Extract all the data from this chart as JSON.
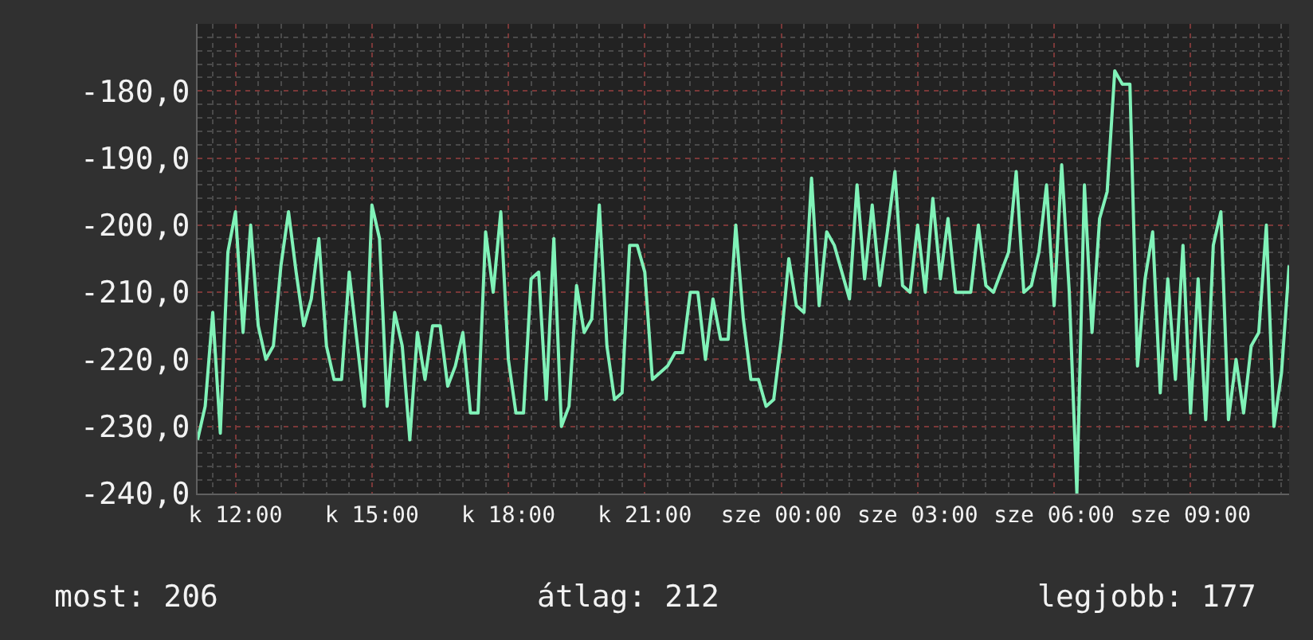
{
  "chart_data": {
    "type": "line",
    "color": "#80f2b8",
    "grid": true,
    "ylim": [
      -240,
      -170
    ],
    "yticks": [
      {
        "value": -240,
        "label": "-240,0"
      },
      {
        "value": -230,
        "label": "-230,0"
      },
      {
        "value": -220,
        "label": "-220,0"
      },
      {
        "value": -210,
        "label": "-210,0"
      },
      {
        "value": -200,
        "label": "-200,0"
      },
      {
        "value": -190,
        "label": "-190,0"
      },
      {
        "value": -180,
        "label": "-180,0"
      }
    ],
    "annotations": [
      "most: 206",
      "átlag: 212",
      "legjobb: 177"
    ],
    "categories": [
      null,
      null,
      null,
      null,
      null,
      "k 12:00",
      null,
      null,
      null,
      null,
      null,
      null,
      null,
      null,
      null,
      null,
      null,
      null,
      null,
      null,
      null,
      null,
      null,
      "k 15:00",
      null,
      null,
      null,
      null,
      null,
      null,
      null,
      null,
      null,
      null,
      null,
      null,
      null,
      null,
      null,
      null,
      null,
      "k 18:00",
      null,
      null,
      null,
      null,
      null,
      null,
      null,
      null,
      null,
      null,
      null,
      null,
      null,
      null,
      null,
      null,
      null,
      "k 21:00",
      null,
      null,
      null,
      null,
      null,
      null,
      null,
      null,
      null,
      null,
      null,
      null,
      null,
      null,
      null,
      null,
      null,
      "sze 00:00",
      null,
      null,
      null,
      null,
      null,
      null,
      null,
      null,
      null,
      null,
      null,
      null,
      null,
      null,
      null,
      null,
      null,
      "sze 03:00",
      null,
      null,
      null,
      null,
      null,
      null,
      null,
      null,
      null,
      null,
      null,
      null,
      null,
      null,
      null,
      null,
      null,
      "sze 06:00",
      null,
      null,
      null,
      null,
      null,
      null,
      null,
      null,
      null,
      null,
      null,
      null,
      null,
      null,
      null,
      null,
      null,
      "sze 09:00",
      null,
      null,
      null,
      null,
      null,
      null,
      null,
      null,
      null,
      null,
      null,
      null,
      null
    ],
    "values": [
      -232,
      -227,
      -213,
      -231,
      -204,
      -198,
      -216,
      -200,
      -215,
      -220,
      -218,
      -206,
      -198,
      -207,
      -215,
      -211,
      -202,
      -218,
      -223,
      -223,
      -207,
      -217,
      -227,
      -197,
      -202,
      -227,
      -213,
      -218,
      -232,
      -216,
      -223,
      -215,
      -215,
      -224,
      -221,
      -216,
      -228,
      -228,
      -201,
      -210,
      -198,
      -220,
      -228,
      -228,
      -208,
      -207,
      -226,
      -202,
      -230,
      -227,
      -209,
      -216,
      -214,
      -197,
      -218,
      -226,
      -225,
      -203,
      -203,
      -207,
      -223,
      -222,
      -221,
      -219,
      -219,
      -210,
      -210,
      -220,
      -211,
      -217,
      -217,
      -200,
      -214,
      -223,
      -223,
      -227,
      -226,
      -217,
      -205,
      -212,
      -213,
      -193,
      -212,
      -201,
      -203,
      -207,
      -211,
      -194,
      -208,
      -197,
      -209,
      -201,
      -192,
      -209,
      -210,
      -200,
      -210,
      -196,
      -208,
      -199,
      -210,
      -210,
      -210,
      -200,
      -209,
      -210,
      -207,
      -204,
      -192,
      -210,
      -209,
      -204,
      -194,
      -212,
      -191,
      -210,
      -240,
      -194,
      -216,
      -199,
      -195,
      -177,
      -179,
      -179,
      -221,
      -208,
      -201,
      -225,
      -208,
      -223,
      -203,
      -228,
      -208,
      -229,
      -203,
      -198,
      -229,
      -220,
      -228,
      -218,
      -216,
      -200,
      -230,
      -222,
      -206
    ]
  }
}
